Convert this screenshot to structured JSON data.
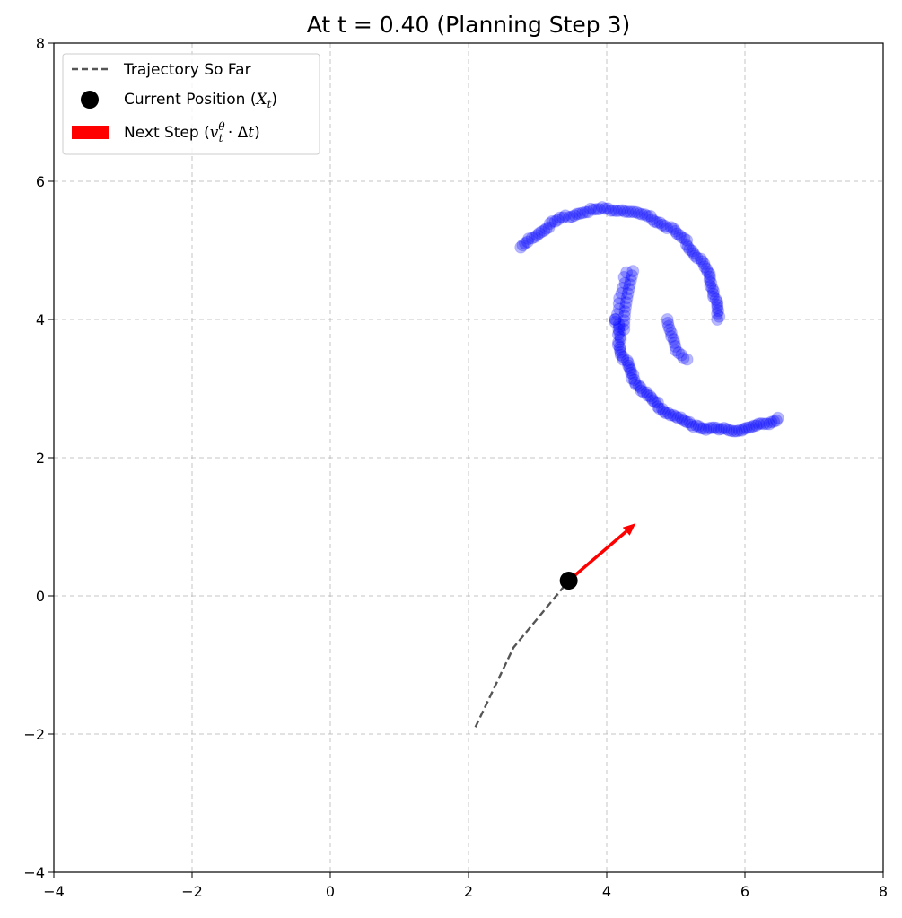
{
  "chart_data": {
    "type": "scatter",
    "title": "At t = 0.40 (Planning Step 3)",
    "xlim": [
      -4,
      8
    ],
    "ylim": [
      -4,
      8
    ],
    "xticks": [
      -4,
      -2,
      0,
      2,
      4,
      6,
      8
    ],
    "yticks": [
      -4,
      -2,
      0,
      2,
      4,
      6,
      8
    ],
    "xtick_labels": [
      "−4",
      "−2",
      "0",
      "2",
      "4",
      "6",
      "8"
    ],
    "ytick_labels": [
      "−4",
      "−2",
      "0",
      "2",
      "4",
      "6",
      "8"
    ],
    "grid": true,
    "legend_position": "top-left",
    "legend": [
      {
        "key": "trajectory",
        "label": "Trajectory So Far"
      },
      {
        "key": "current",
        "label_text": "Current Position (",
        "label_math": "X",
        "label_sub": "t",
        "label_close": ")"
      },
      {
        "key": "step",
        "label_text": "Next Step (",
        "label_math": "v",
        "label_sub": "t",
        "label_sup": "θ",
        "label_mid": " · Δ",
        "label_math2": "t",
        "label_close": ")"
      }
    ],
    "target_moons": {
      "color": "#0000ff",
      "upper_arc": {
        "center": [
          4.0,
          4.0
        ],
        "radius": 1.6,
        "angle_start_deg": 0,
        "angle_end_deg": 140,
        "points": 95
      },
      "upper_tip": {
        "center": [
          5.6,
          4.0
        ],
        "radius": 0.72,
        "angle_start_deg": 180,
        "angle_end_deg": 233,
        "points": 14
      },
      "lower_arc": {
        "center": [
          5.75,
          4.0
        ],
        "radius": 1.6,
        "angle_start_deg": 180,
        "angle_end_deg": 297,
        "points": 90
      },
      "lower_tip": {
        "center": [
          5.75,
          4.0
        ],
        "radius": 1.6,
        "angle_start_deg": 297,
        "angle_end_deg": 315,
        "points": 12
      },
      "left_inner": {
        "center": [
          5.75,
          4.0
        ],
        "radius": 1.6,
        "angle_start_deg": 155,
        "angle_end_deg": 180,
        "points": 10
      }
    },
    "trajectory": {
      "x": [
        2.1,
        2.65,
        3.45
      ],
      "y": [
        -1.9,
        -0.75,
        0.22
      ],
      "color": "#555555"
    },
    "current_position": {
      "x": 3.45,
      "y": 0.22,
      "color": "#000000"
    },
    "next_step": {
      "x": 3.45,
      "y": 0.22,
      "dx": 0.97,
      "dy": 0.83,
      "color": "#ff0000"
    }
  }
}
